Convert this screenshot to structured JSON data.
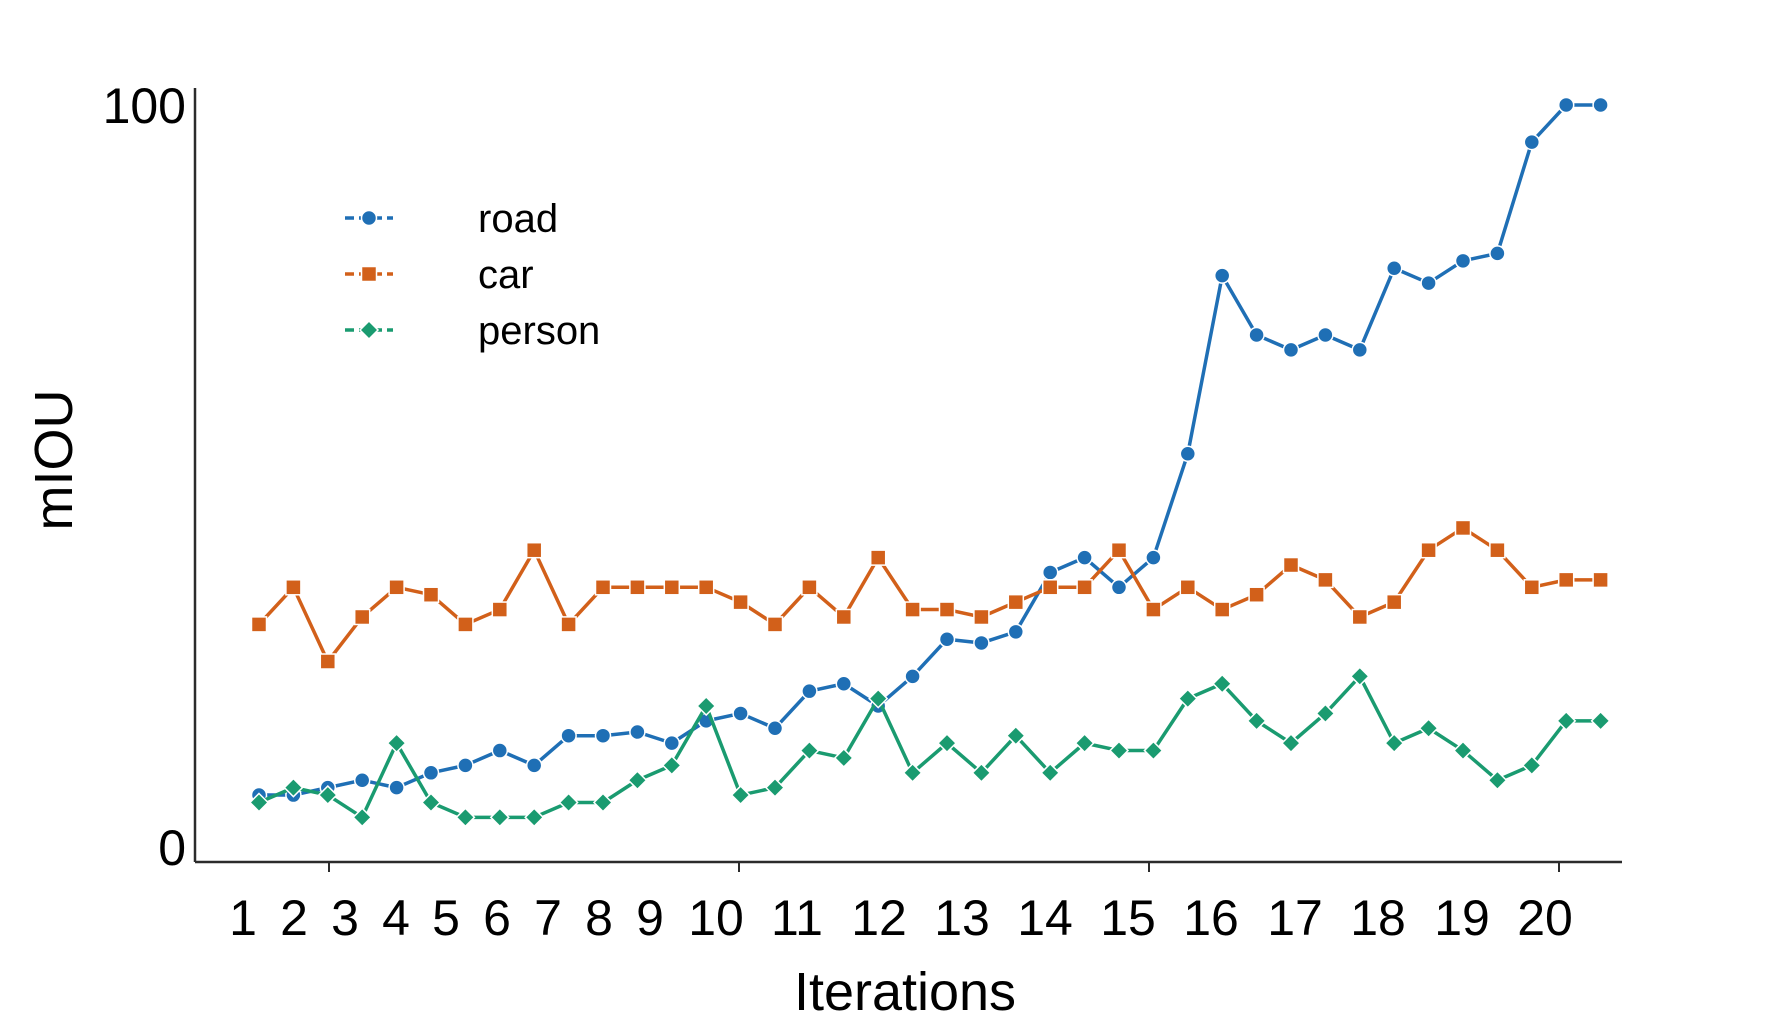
{
  "chart_data": {
    "type": "line",
    "xlabel": "Iterations",
    "ylabel": "mIOU",
    "ylim": [
      0,
      100
    ],
    "y_tick_labels": [
      "0",
      "100"
    ],
    "x_tick_labels": [
      "1",
      "2",
      "3",
      "4",
      "5",
      "6",
      "7",
      "8",
      "9",
      "10",
      "11",
      "12",
      "13",
      "14",
      "15",
      "16",
      "17",
      "18",
      "19",
      "20"
    ],
    "legend_position": "top-left",
    "grid": false,
    "x": [
      1,
      2,
      3,
      4,
      5,
      6,
      7,
      8,
      9,
      10,
      11,
      12,
      13,
      14,
      15,
      16,
      17,
      18,
      19,
      20,
      21,
      22,
      23,
      24,
      25,
      26,
      27,
      28,
      29,
      30,
      31,
      32,
      33,
      34,
      35,
      36,
      37,
      38,
      39,
      40
    ],
    "series": [
      {
        "name": "road",
        "color": "#1f6fb5",
        "marker": "circle",
        "values": [
          7,
          7,
          8,
          9,
          8,
          10,
          11,
          13,
          11,
          15,
          15,
          15.5,
          14,
          17,
          18,
          16,
          21,
          22,
          19,
          23,
          28,
          27.5,
          29,
          37,
          39,
          35,
          39,
          53,
          77,
          69,
          67,
          69,
          67,
          78,
          76,
          79,
          80,
          95,
          100,
          100
        ]
      },
      {
        "name": "car",
        "color": "#d2601a",
        "marker": "square",
        "values": [
          30,
          35,
          25,
          31,
          35,
          34,
          30,
          32,
          40,
          30,
          35,
          35,
          35,
          35,
          33,
          30,
          35,
          31,
          39,
          32,
          32,
          31,
          33,
          35,
          35,
          40,
          32,
          35,
          32,
          34,
          38,
          36,
          31,
          33,
          40,
          43,
          40,
          35,
          36,
          36
        ]
      },
      {
        "name": "person",
        "color": "#1a9b70",
        "marker": "diamond",
        "values": [
          6,
          8,
          7,
          4,
          14,
          6,
          4,
          4,
          4,
          6,
          6,
          9,
          11,
          19,
          7,
          8,
          13,
          12,
          20,
          10,
          14,
          10,
          15,
          10,
          14,
          13,
          13,
          20,
          22,
          17,
          14,
          18,
          23,
          14,
          16,
          13,
          9,
          11,
          17,
          17
        ]
      }
    ]
  }
}
